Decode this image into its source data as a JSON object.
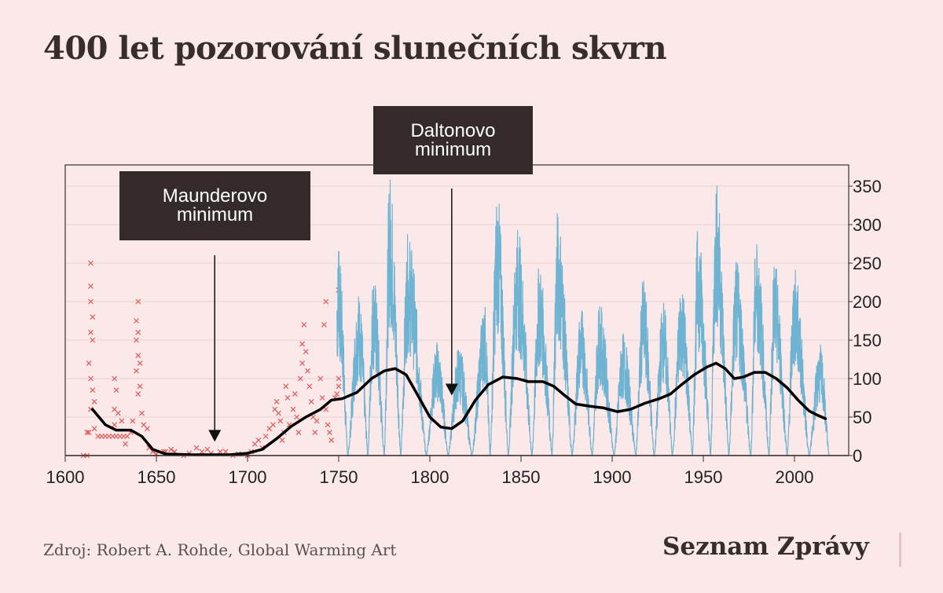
{
  "title": "400 let pozorování slunečních skvrn",
  "source": "Zdroj: Robert A. Rohde, Global Warming Art",
  "logo": "Seznam Zprávy",
  "colors": {
    "background": "#fbe9e9",
    "observations": "#e05a5a",
    "monthly": "#6fb3d2",
    "smoothed": "#000000",
    "annotation_bg": "#342a2a",
    "grid": "#e6d3d3"
  },
  "annotations": [
    {
      "line1": "Maunderovo",
      "line2": "minimum",
      "arrow_year": 1682,
      "arrow_value": 18
    },
    {
      "line1": "Daltonovo",
      "line2": "minimum",
      "arrow_year": 1812,
      "arrow_value": 78
    }
  ],
  "chart_data": {
    "type": "line",
    "title": "400 let pozorování slunečních skvrn",
    "xlabel": "",
    "ylabel": "",
    "xlim": [
      1600,
      2030
    ],
    "ylim": [
      0,
      375
    ],
    "x_ticks": [
      1600,
      1650,
      1700,
      1750,
      1800,
      1850,
      1900,
      1950,
      2000
    ],
    "y_ticks": [
      0,
      50,
      100,
      150,
      200,
      250,
      300,
      350
    ],
    "y_axis_side": "right",
    "grid": true,
    "series": [
      {
        "name": "group observations",
        "type": "scatter",
        "marker": "x",
        "points": [
          [
            1610,
            0
          ],
          [
            1612,
            0
          ],
          [
            1614,
            250
          ],
          [
            1614,
            220
          ],
          [
            1614,
            200
          ],
          [
            1615,
            180
          ],
          [
            1614,
            160
          ],
          [
            1615,
            150
          ],
          [
            1613,
            120
          ],
          [
            1614,
            100
          ],
          [
            1615,
            85
          ],
          [
            1614,
            60
          ],
          [
            1616,
            70
          ],
          [
            1612,
            30
          ],
          [
            1613,
            30
          ],
          [
            1616,
            35
          ],
          [
            1618,
            25
          ],
          [
            1620,
            25
          ],
          [
            1622,
            25
          ],
          [
            1624,
            25
          ],
          [
            1626,
            25
          ],
          [
            1628,
            25
          ],
          [
            1630,
            25
          ],
          [
            1632,
            25
          ],
          [
            1634,
            25
          ],
          [
            1627,
            60
          ],
          [
            1627,
            40
          ],
          [
            1628,
            85
          ],
          [
            1627,
            100
          ],
          [
            1629,
            55
          ],
          [
            1631,
            45
          ],
          [
            1633,
            15
          ],
          [
            1636,
            30
          ],
          [
            1637,
            45
          ],
          [
            1639,
            175
          ],
          [
            1640,
            200
          ],
          [
            1640,
            160
          ],
          [
            1639,
            150
          ],
          [
            1640,
            130
          ],
          [
            1641,
            120
          ],
          [
            1639,
            110
          ],
          [
            1641,
            90
          ],
          [
            1640,
            80
          ],
          [
            1642,
            55
          ],
          [
            1643,
            40
          ],
          [
            1645,
            35
          ],
          [
            1646,
            10
          ],
          [
            1648,
            5
          ],
          [
            1650,
            2
          ],
          [
            1654,
            5
          ],
          [
            1655,
            5
          ],
          [
            1658,
            8
          ],
          [
            1660,
            5
          ],
          [
            1665,
            0
          ],
          [
            1668,
            3
          ],
          [
            1672,
            10
          ],
          [
            1675,
            5
          ],
          [
            1678,
            8
          ],
          [
            1680,
            3
          ],
          [
            1685,
            5
          ],
          [
            1688,
            5
          ],
          [
            1692,
            0
          ],
          [
            1695,
            2
          ],
          [
            1700,
            0
          ],
          [
            1702,
            5
          ],
          [
            1704,
            15
          ],
          [
            1706,
            20
          ],
          [
            1708,
            10
          ],
          [
            1710,
            25
          ],
          [
            1712,
            35
          ],
          [
            1714,
            40
          ],
          [
            1715,
            60
          ],
          [
            1716,
            70
          ],
          [
            1717,
            55
          ],
          [
            1718,
            45
          ],
          [
            1719,
            20
          ],
          [
            1720,
            30
          ],
          [
            1721,
            90
          ],
          [
            1722,
            75
          ],
          [
            1723,
            40
          ],
          [
            1725,
            60
          ],
          [
            1726,
            80
          ],
          [
            1727,
            50
          ],
          [
            1728,
            30
          ],
          [
            1729,
            100
          ],
          [
            1730,
            120
          ],
          [
            1730,
            145
          ],
          [
            1731,
            170
          ],
          [
            1732,
            135
          ],
          [
            1733,
            110
          ],
          [
            1734,
            90
          ],
          [
            1735,
            70
          ],
          [
            1736,
            50
          ],
          [
            1737,
            30
          ],
          [
            1738,
            45
          ],
          [
            1740,
            100
          ],
          [
            1741,
            75
          ],
          [
            1742,
            170
          ],
          [
            1743,
            200
          ],
          [
            1743,
            60
          ],
          [
            1744,
            40
          ],
          [
            1745,
            30
          ],
          [
            1746,
            20
          ],
          [
            1748,
            75
          ],
          [
            1749,
            80
          ],
          [
            1750,
            215
          ],
          [
            1750,
            100
          ],
          [
            1750,
            90
          ]
        ]
      },
      {
        "name": "monthly sunspot number",
        "type": "line",
        "cycle_minima_years": [
          1755,
          1766,
          1775,
          1784,
          1798,
          1810,
          1823,
          1833,
          1843,
          1856,
          1867,
          1878,
          1889,
          1901,
          1913,
          1923,
          1933,
          1944,
          1954,
          1964,
          1976,
          1986,
          1996,
          2008,
          2019
        ],
        "cycle_peaks": [
          [
            1750,
            265
          ],
          [
            1761,
            215
          ],
          [
            1769,
            240
          ],
          [
            1778,
            370
          ],
          [
            1788,
            290
          ],
          [
            1804,
            150
          ],
          [
            1816,
            145
          ],
          [
            1830,
            200
          ],
          [
            1837,
            345
          ],
          [
            1848,
            300
          ],
          [
            1860,
            250
          ],
          [
            1870,
            320
          ],
          [
            1883,
            195
          ],
          [
            1893,
            200
          ],
          [
            1906,
            160
          ],
          [
            1917,
            230
          ],
          [
            1928,
            205
          ],
          [
            1938,
            230
          ],
          [
            1947,
            300
          ],
          [
            1957,
            360
          ],
          [
            1968,
            255
          ],
          [
            1979,
            290
          ],
          [
            1989,
            255
          ],
          [
            2000,
            245
          ],
          [
            2014,
            145
          ]
        ],
        "end_year": 2020
      },
      {
        "name": "smoothed",
        "type": "line",
        "points": [
          [
            1615,
            60
          ],
          [
            1622,
            40
          ],
          [
            1628,
            33
          ],
          [
            1636,
            33
          ],
          [
            1642,
            25
          ],
          [
            1648,
            8
          ],
          [
            1655,
            2
          ],
          [
            1670,
            1
          ],
          [
            1690,
            1
          ],
          [
            1700,
            3
          ],
          [
            1708,
            8
          ],
          [
            1716,
            22
          ],
          [
            1724,
            38
          ],
          [
            1732,
            50
          ],
          [
            1740,
            60
          ],
          [
            1746,
            72
          ],
          [
            1752,
            74
          ],
          [
            1760,
            82
          ],
          [
            1768,
            100
          ],
          [
            1775,
            110
          ],
          [
            1781,
            113
          ],
          [
            1787,
            105
          ],
          [
            1793,
            80
          ],
          [
            1800,
            50
          ],
          [
            1806,
            37
          ],
          [
            1812,
            35
          ],
          [
            1818,
            45
          ],
          [
            1825,
            72
          ],
          [
            1832,
            92
          ],
          [
            1840,
            102
          ],
          [
            1848,
            100
          ],
          [
            1854,
            96
          ],
          [
            1862,
            96
          ],
          [
            1868,
            90
          ],
          [
            1874,
            78
          ],
          [
            1880,
            67
          ],
          [
            1888,
            64
          ],
          [
            1895,
            62
          ],
          [
            1903,
            57
          ],
          [
            1910,
            60
          ],
          [
            1918,
            68
          ],
          [
            1926,
            74
          ],
          [
            1932,
            80
          ],
          [
            1938,
            92
          ],
          [
            1945,
            105
          ],
          [
            1952,
            115
          ],
          [
            1957,
            120
          ],
          [
            1962,
            113
          ],
          [
            1967,
            100
          ],
          [
            1972,
            102
          ],
          [
            1978,
            108
          ],
          [
            1984,
            108
          ],
          [
            1990,
            100
          ],
          [
            1996,
            88
          ],
          [
            2002,
            72
          ],
          [
            2008,
            58
          ],
          [
            2013,
            52
          ],
          [
            2017,
            48
          ]
        ]
      }
    ]
  }
}
